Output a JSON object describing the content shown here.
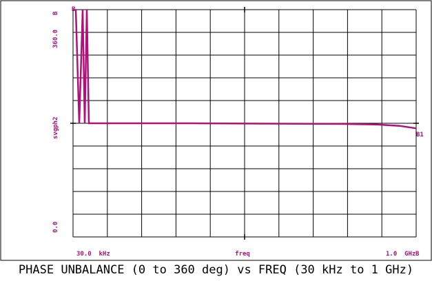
{
  "chart_data": {
    "type": "line",
    "title": "PHASE UNBALANCE (0 to 360 deg) vs FREQ (30 kHz to 1 GHz)",
    "xlabel": "freq",
    "ylabel": "svgph2",
    "x_tick_labels": [
      "30.0  kHz",
      "1.0  GHz"
    ],
    "y_tick_labels": [
      "0.0",
      "360.0"
    ],
    "top_marker": "B",
    "right_marker": "B",
    "trace_start_label": "B",
    "trace_end_label": "B1",
    "ylim": [
      0,
      360
    ],
    "grid": true,
    "series": [
      {
        "x": [
          30,
          85,
          145,
          200,
          235,
          290,
          1000,
          100000,
          300000,
          600000,
          1000000
        ],
        "y": [
          360,
          180,
          360,
          180,
          360,
          180,
          180,
          179,
          178,
          176,
          172
        ]
      }
    ]
  },
  "colors": {
    "trace": "#b0107a",
    "grid": "#000000",
    "text": "#b0107a",
    "caption": "#000000"
  }
}
